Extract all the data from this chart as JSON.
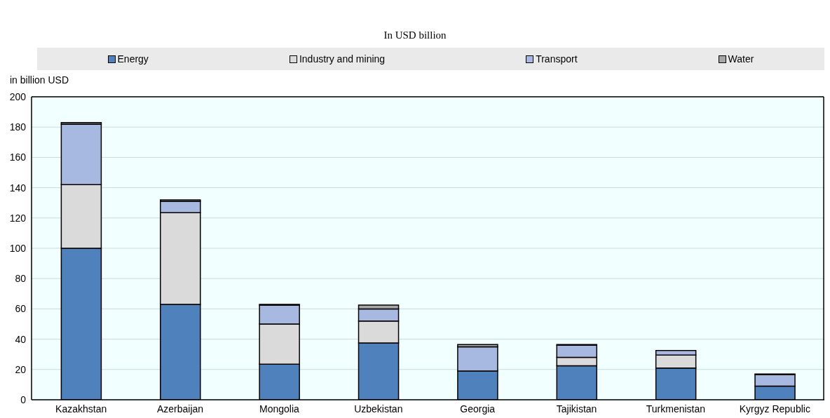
{
  "chart_data": {
    "type": "bar",
    "title": "In USD billion",
    "ylabel": "in billion USD",
    "categories": [
      "Kazakhstan",
      "Azerbaijan",
      "Mongolia",
      "Uzbekistan",
      "Georgia",
      "Tajikistan",
      "Turkmenistan",
      "Kyrgyz Republic"
    ],
    "stacked": true,
    "series": [
      {
        "name": "Energy",
        "color": "#4f81bd",
        "values": [
          100,
          63,
          23.5,
          37.5,
          19,
          22.5,
          21,
          9
        ]
      },
      {
        "name": "Industry and mining",
        "color": "#dadada",
        "values": [
          42,
          60.5,
          26.5,
          14.5,
          0,
          5.5,
          8.5,
          null
        ]
      },
      {
        "name": "Transport",
        "color": "#a7b8e1",
        "values": [
          40,
          7.5,
          12.5,
          8,
          16,
          8,
          3,
          7.5
        ]
      },
      {
        "name": "Water",
        "color": "#a6a6a6",
        "values": [
          1,
          1,
          0.5,
          2.5,
          1.5,
          0.5,
          0,
          0.5
        ]
      }
    ],
    "ylim": [
      0,
      200
    ],
    "yticks": [
      0,
      20,
      40,
      60,
      80,
      100,
      120,
      140,
      160,
      180,
      200
    ],
    "grid": "y",
    "legend": "top"
  }
}
